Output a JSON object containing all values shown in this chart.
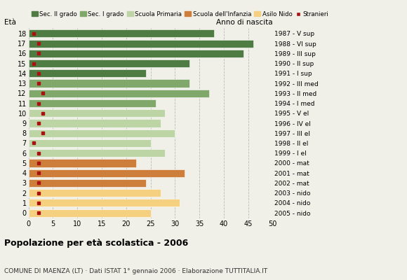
{
  "ages": [
    18,
    17,
    16,
    15,
    14,
    13,
    12,
    11,
    10,
    9,
    8,
    7,
    6,
    5,
    4,
    3,
    2,
    1,
    0
  ],
  "years": [
    "1987 - V sup",
    "1988 - VI sup",
    "1989 - III sup",
    "1990 - II sup",
    "1991 - I sup",
    "1992 - III med",
    "1993 - II med",
    "1994 - I med",
    "1995 - V el",
    "1996 - IV el",
    "1997 - III el",
    "1998 - II el",
    "1999 - I el",
    "2000 - mat",
    "2001 - mat",
    "2002 - mat",
    "2003 - nido",
    "2004 - nido",
    "2005 - nido"
  ],
  "values": [
    38,
    46,
    44,
    33,
    24,
    33,
    37,
    26,
    28,
    27,
    30,
    25,
    28,
    22,
    32,
    24,
    27,
    31,
    25
  ],
  "stranieri": [
    1,
    2,
    2,
    1,
    2,
    2,
    3,
    2,
    3,
    2,
    3,
    1,
    2,
    2,
    2,
    2,
    2,
    2,
    2
  ],
  "colors": {
    "Sec. II grado": "#4e7c42",
    "Sec. I grado": "#80a86a",
    "Scuola Primaria": "#bdd4a4",
    "Scuola dell'Infanzia": "#cd7e3a",
    "Asilo Nido": "#f5d080",
    "Stranieri": "#aa1111"
  },
  "age_category": {
    "18": "Sec. II grado",
    "17": "Sec. II grado",
    "16": "Sec. II grado",
    "15": "Sec. II grado",
    "14": "Sec. II grado",
    "13": "Sec. I grado",
    "12": "Sec. I grado",
    "11": "Sec. I grado",
    "10": "Scuola Primaria",
    "9": "Scuola Primaria",
    "8": "Scuola Primaria",
    "7": "Scuola Primaria",
    "6": "Scuola Primaria",
    "5": "Scuola dell'Infanzia",
    "4": "Scuola dell'Infanzia",
    "3": "Scuola dell'Infanzia",
    "2": "Asilo Nido",
    "1": "Asilo Nido",
    "0": "Asilo Nido"
  },
  "title": "Popolazione per età scolastica - 2006",
  "subtitle": "COMUNE DI MAENZA (LT) · Dati ISTAT 1° gennaio 2006 · Elaborazione TUTTITALIA.IT",
  "xlabel_eta": "Età",
  "xlabel_anno": "Anno di nascita",
  "xlim": [
    0,
    50
  ],
  "xticks": [
    0,
    5,
    10,
    15,
    20,
    25,
    30,
    35,
    40,
    45,
    50
  ],
  "bg_color": "#f0f0e8",
  "bar_height": 0.78
}
